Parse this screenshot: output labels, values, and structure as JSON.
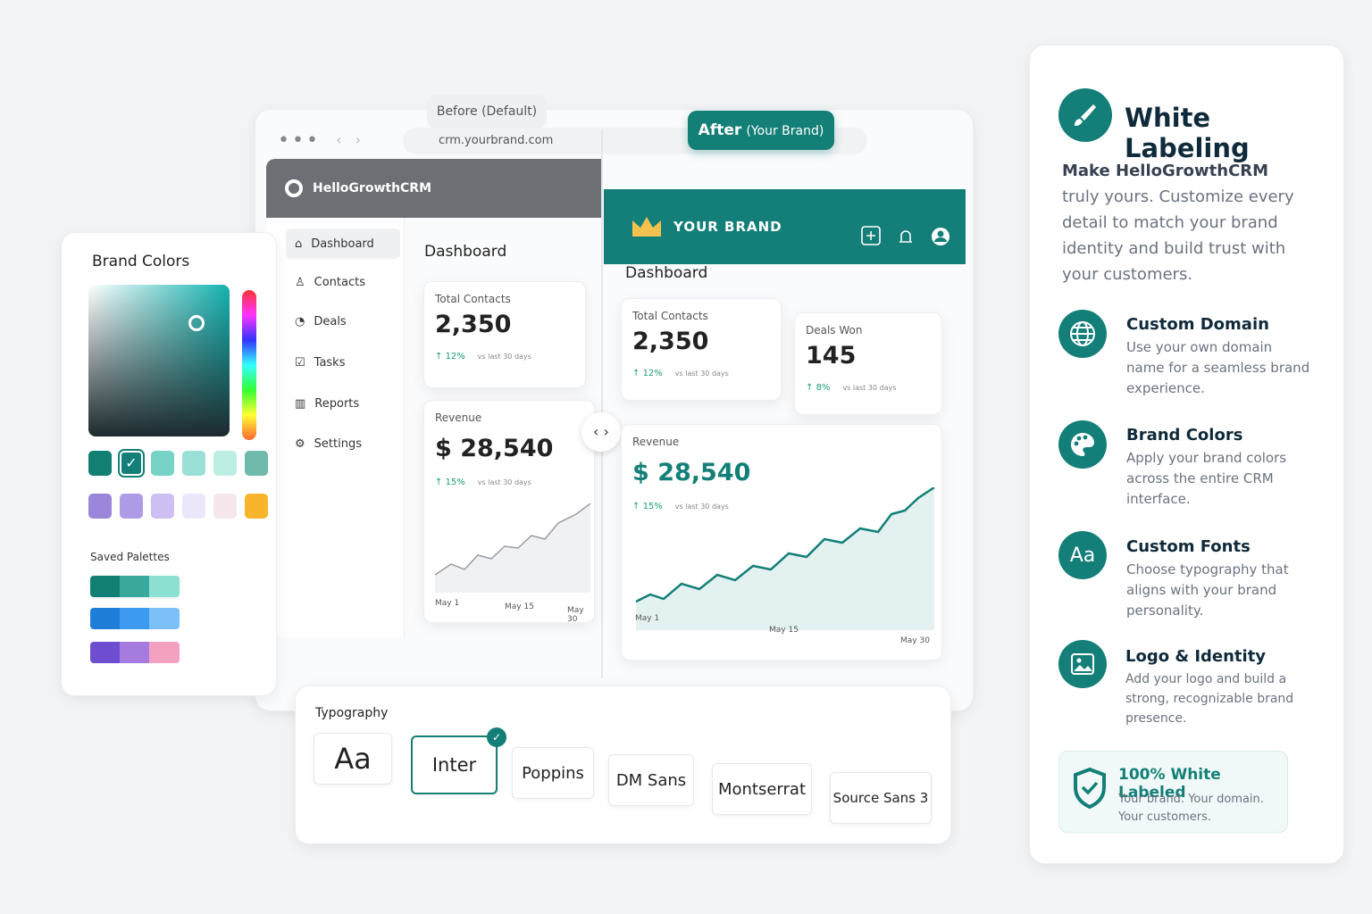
{
  "labels": {
    "before": "Before (Default)",
    "after_main": "After",
    "after_sub": "(Your Brand)"
  },
  "browser": {
    "url": "crm.yourbrand.com"
  },
  "before": {
    "brand": "HelloGrowthCRM",
    "nav": [
      "Dashboard",
      "Contacts",
      "Deals",
      "Tasks",
      "Reports",
      "Settings"
    ],
    "heading": "Dashboard",
    "total_contacts": {
      "label": "Total Contacts",
      "value": "2,350",
      "change": "12%",
      "note": "vs last 30 days"
    },
    "revenue": {
      "label": "Revenue",
      "currency": "$",
      "value": "28,540",
      "change": "15%",
      "note": "vs last 30 days"
    },
    "chart_x": [
      "May 1",
      "May 15",
      "May 30"
    ]
  },
  "after": {
    "brand": "YOUR BRAND",
    "heading": "Dashboard",
    "total_contacts": {
      "label": "Total Contacts",
      "value": "2,350",
      "change": "12%",
      "note": "vs last 30 days"
    },
    "deals_won": {
      "label": "Deals Won",
      "value": "145",
      "change": "8%",
      "note": "vs last 30 days"
    },
    "revenue": {
      "label": "Revenue",
      "currency": "$",
      "value": "28,540",
      "change": "15%",
      "note": "vs last 30 days"
    },
    "chart_x": [
      "May 1",
      "May 15",
      "May 30"
    ]
  },
  "brand_colors": {
    "title": "Brand Colors",
    "saved_title": "Saved Palettes"
  },
  "typography": {
    "title": "Typography",
    "sample": "Aa",
    "fonts": [
      "Inter",
      "Poppins",
      "DM Sans",
      "Montserrat",
      "Source Sans 3"
    ]
  },
  "panel": {
    "title": "White Labeling",
    "intro_bold": "Make HelloGrowthCRM",
    "intro": "truly yours. Customize every detail to match your brand identity and build trust with your customers.",
    "fonts_icon": "Aa",
    "features": [
      {
        "title": "Custom Domain",
        "text": "Use your own domain name for a seamless brand experience."
      },
      {
        "title": "Brand Colors",
        "text": "Apply your brand colors across the entire CRM interface."
      },
      {
        "title": "Custom Fonts",
        "text": "Choose typography that aligns with your brand personality."
      },
      {
        "title": "Logo & Identity",
        "text": "Add your logo and build a strong, recognizable brand presence."
      }
    ],
    "badge": {
      "title": "100% White Labeled",
      "text": "Your brand. Your domain. Your customers."
    }
  }
}
